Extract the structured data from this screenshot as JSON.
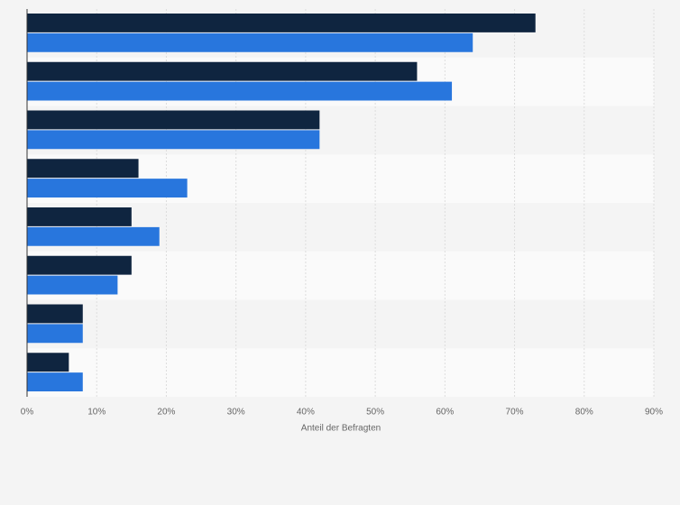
{
  "chart_data": {
    "type": "bar",
    "orientation": "horizontal",
    "x_label": "Anteil der Befragten",
    "categories": [
      null,
      null,
      null,
      null,
      null,
      null,
      null,
      null
    ],
    "series": [
      {
        "color": "#0f2540",
        "values": [
          73,
          56,
          42,
          16,
          15,
          15,
          8,
          6
        ]
      },
      {
        "color": "#2876dd",
        "values": [
          64,
          61,
          42,
          23,
          19,
          13,
          8,
          8
        ]
      }
    ],
    "xlim": [
      0,
      90
    ],
    "xticks": [
      {
        "value": 0,
        "label": "0%"
      },
      {
        "value": 10,
        "label": "10%"
      },
      {
        "value": 20,
        "label": "20%"
      },
      {
        "value": 30,
        "label": "30%"
      },
      {
        "value": 40,
        "label": "40%"
      },
      {
        "value": 50,
        "label": "50%"
      },
      {
        "value": 60,
        "label": "60%"
      },
      {
        "value": 70,
        "label": "70%"
      },
      {
        "value": 80,
        "label": "80%"
      },
      {
        "value": 90,
        "label": "90%"
      }
    ],
    "grid": true
  }
}
